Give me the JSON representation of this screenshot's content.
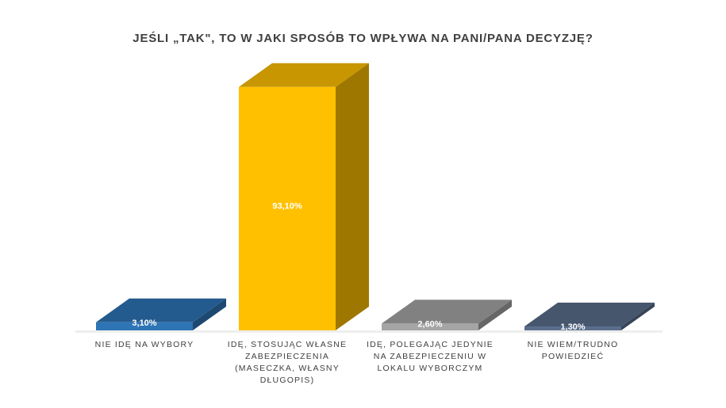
{
  "chart_data": {
    "type": "bar",
    "title": "JEŚLI „TAK\", TO W JAKI SPOSÓB TO WPŁYWA NA PANI/PANA DECYZJĘ?",
    "categories": [
      "NIE IDĘ NA WYBORY",
      "IDĘ, STOSUJĄC WŁASNE ZABEZPIECZENIA (MASECZKA, WŁASNY DŁUGOPIS)",
      "IDĘ, POLEGAJĄC JEDYNIE NA ZABEZPIECZENIU W LOKALU WYBORCZYM",
      "NIE WIEM/TRUDNO POWIEDZIEĆ"
    ],
    "values": [
      3.1,
      93.1,
      2.6,
      1.3
    ],
    "data_labels": [
      "3,10%",
      "93,10%",
      "2,60%",
      "1,30%"
    ],
    "colors": [
      "#2e75b6",
      "#ffc000",
      "#a5a5a5",
      "#5a6e8c"
    ],
    "xlabel": "",
    "ylabel": "",
    "ylim": [
      0,
      100
    ],
    "grid": false,
    "legend": "none",
    "style": "3d-column"
  }
}
